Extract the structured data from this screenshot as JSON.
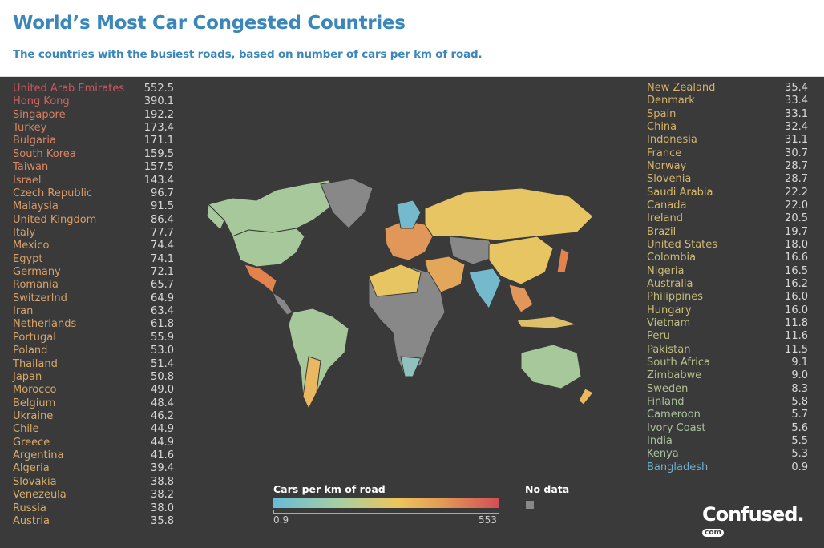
{
  "header": {
    "title": "World’s Most Car Congested Countries",
    "subtitle": "The countries with the busiest roads, based on number of cars per km of road."
  },
  "left_list": [
    {
      "country": "United Arab Emirates",
      "value": "552.5"
    },
    {
      "country": "Hong Kong",
      "value": "390.1"
    },
    {
      "country": "Singapore",
      "value": "192.2"
    },
    {
      "country": "Turkey",
      "value": "173.4"
    },
    {
      "country": "Bulgaria",
      "value": "171.1"
    },
    {
      "country": "South Korea",
      "value": "159.5"
    },
    {
      "country": "Taiwan",
      "value": "157.5"
    },
    {
      "country": "Israel",
      "value": "143.4"
    },
    {
      "country": "Czech Republic",
      "value": "96.7"
    },
    {
      "country": "Malaysia",
      "value": "91.5"
    },
    {
      "country": "United Kingdom",
      "value": "86.4"
    },
    {
      "country": "Italy",
      "value": "77.7"
    },
    {
      "country": "Mexico",
      "value": "74.4"
    },
    {
      "country": "Egypt",
      "value": "74.1"
    },
    {
      "country": "Germany",
      "value": "72.1"
    },
    {
      "country": "Romania",
      "value": "65.7"
    },
    {
      "country": "Switzerlnd",
      "value": "64.9"
    },
    {
      "country": "Iran",
      "value": "63.4"
    },
    {
      "country": "Netherlands",
      "value": "61.8"
    },
    {
      "country": "Portugal",
      "value": "55.9"
    },
    {
      "country": "Poland",
      "value": "53.0"
    },
    {
      "country": "Thailand",
      "value": "51.4"
    },
    {
      "country": "Japan",
      "value": "50.8"
    },
    {
      "country": "Morocco",
      "value": "49.0"
    },
    {
      "country": "Belgium",
      "value": "48.4"
    },
    {
      "country": "Ukraine",
      "value": "46.2"
    },
    {
      "country": "Chile",
      "value": "44.9"
    },
    {
      "country": "Greece",
      "value": "44.9"
    },
    {
      "country": "Argentina",
      "value": "41.6"
    },
    {
      "country": "Algeria",
      "value": "39.4"
    },
    {
      "country": "Slovakia",
      "value": "38.8"
    },
    {
      "country": "Venezeula",
      "value": "38.2"
    },
    {
      "country": "Russia",
      "value": "38.0"
    },
    {
      "country": "Austria",
      "value": "35.8"
    }
  ],
  "right_list": [
    {
      "country": "New Zealand",
      "value": "35.4"
    },
    {
      "country": "Denmark",
      "value": "33.4"
    },
    {
      "country": "Spain",
      "value": "33.1"
    },
    {
      "country": "China",
      "value": "32.4"
    },
    {
      "country": "Indonesia",
      "value": "31.1"
    },
    {
      "country": "France",
      "value": "30.7"
    },
    {
      "country": "Norway",
      "value": "28.7"
    },
    {
      "country": "Slovenia",
      "value": "28.7"
    },
    {
      "country": "Saudi Arabia",
      "value": "22.2"
    },
    {
      "country": "Canada",
      "value": "22.0"
    },
    {
      "country": "Ireland",
      "value": "20.5"
    },
    {
      "country": "Brazil",
      "value": "19.7"
    },
    {
      "country": "United States",
      "value": "18.0"
    },
    {
      "country": "Colombia",
      "value": "16.6"
    },
    {
      "country": "Nigeria",
      "value": "16.5"
    },
    {
      "country": "Australia",
      "value": "16.2"
    },
    {
      "country": "Philippines",
      "value": "16.0"
    },
    {
      "country": "Hungary",
      "value": "16.0"
    },
    {
      "country": "Vietnam",
      "value": "11.8"
    },
    {
      "country": "Peru",
      "value": "11.6"
    },
    {
      "country": "Pakistan",
      "value": "11.5"
    },
    {
      "country": "South Africa",
      "value": "9.1"
    },
    {
      "country": "Zimbabwe",
      "value": "9.0"
    },
    {
      "country": "Sweden",
      "value": "8.3"
    },
    {
      "country": "Finland",
      "value": "5.8"
    },
    {
      "country": "Cameroon",
      "value": "5.7"
    },
    {
      "country": "Ivory Coast",
      "value": "5.6"
    },
    {
      "country": "India",
      "value": "5.5"
    },
    {
      "country": "Kenya",
      "value": "5.3"
    },
    {
      "country": "Bangladesh",
      "value": "0.9"
    }
  ],
  "legend": {
    "title": "Cars per km of road",
    "min": "0.9",
    "max": "553",
    "nodata": "No data",
    "scale_colors": [
      "#67bcd6",
      "#a9cfa0",
      "#eec55c",
      "#e29b57",
      "#d24e57"
    ],
    "nodata_color": "#888888"
  },
  "brand": {
    "name": "Confused.",
    "suffix": "com"
  },
  "colors": {
    "header_text": "#3b87b9",
    "background": "#3a3a3a"
  }
}
